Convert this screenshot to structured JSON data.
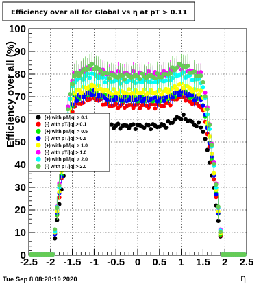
{
  "chart_data": {
    "type": "scatter",
    "title": "Efficiency over all for Global vs   η at pT > 0.11",
    "xlabel": "η",
    "ylabel": "Efficiency over all (%)",
    "xlim": [
      -2.5,
      2.5
    ],
    "ylim": [
      0,
      100
    ],
    "x_ticks": [
      "-2.5",
      "-2",
      "-1.5",
      "-1",
      "-0.5",
      "0",
      "0.5",
      "1",
      "1.5",
      "2",
      "2.5"
    ],
    "y_ticks": [
      "0",
      "10",
      "20",
      "30",
      "40",
      "50",
      "60",
      "70",
      "80",
      "90",
      "100"
    ],
    "grid": true,
    "legend_position": "left-middle",
    "timestamp": "Tue Sep  8 08:28:19 2020",
    "series": [
      {
        "name": "(+) with pT/|q| > 0.1",
        "color": "#000000",
        "plateau": 57,
        "bump": 61
      },
      {
        "name": "(-) with pT/|q| > 0.1",
        "color": "#ff0000",
        "plateau": 66,
        "bump": 70
      },
      {
        "name": "(+) with pT/|q| > 0.5",
        "color": "#00ee00",
        "plateau": 69,
        "bump": 72
      },
      {
        "name": "(-) with pT/|q| > 0.5",
        "color": "#0000ff",
        "plateau": 69,
        "bump": 72
      },
      {
        "name": "(+) with pT/|q| > 1.0",
        "color": "#ffff00",
        "plateau": 72,
        "bump": 75
      },
      {
        "name": "(-) with pT/|q| > 1.0",
        "color": "#ff00ff",
        "plateau": 80,
        "bump": 83
      },
      {
        "name": "(+) with pT/|q| > 2.0",
        "color": "#00ffff",
        "plateau": 77,
        "bump": 80
      },
      {
        "name": "(-) with pT/|q| > 2.0",
        "color": "#66cc55",
        "plateau": 79,
        "bump": 84
      }
    ]
  }
}
